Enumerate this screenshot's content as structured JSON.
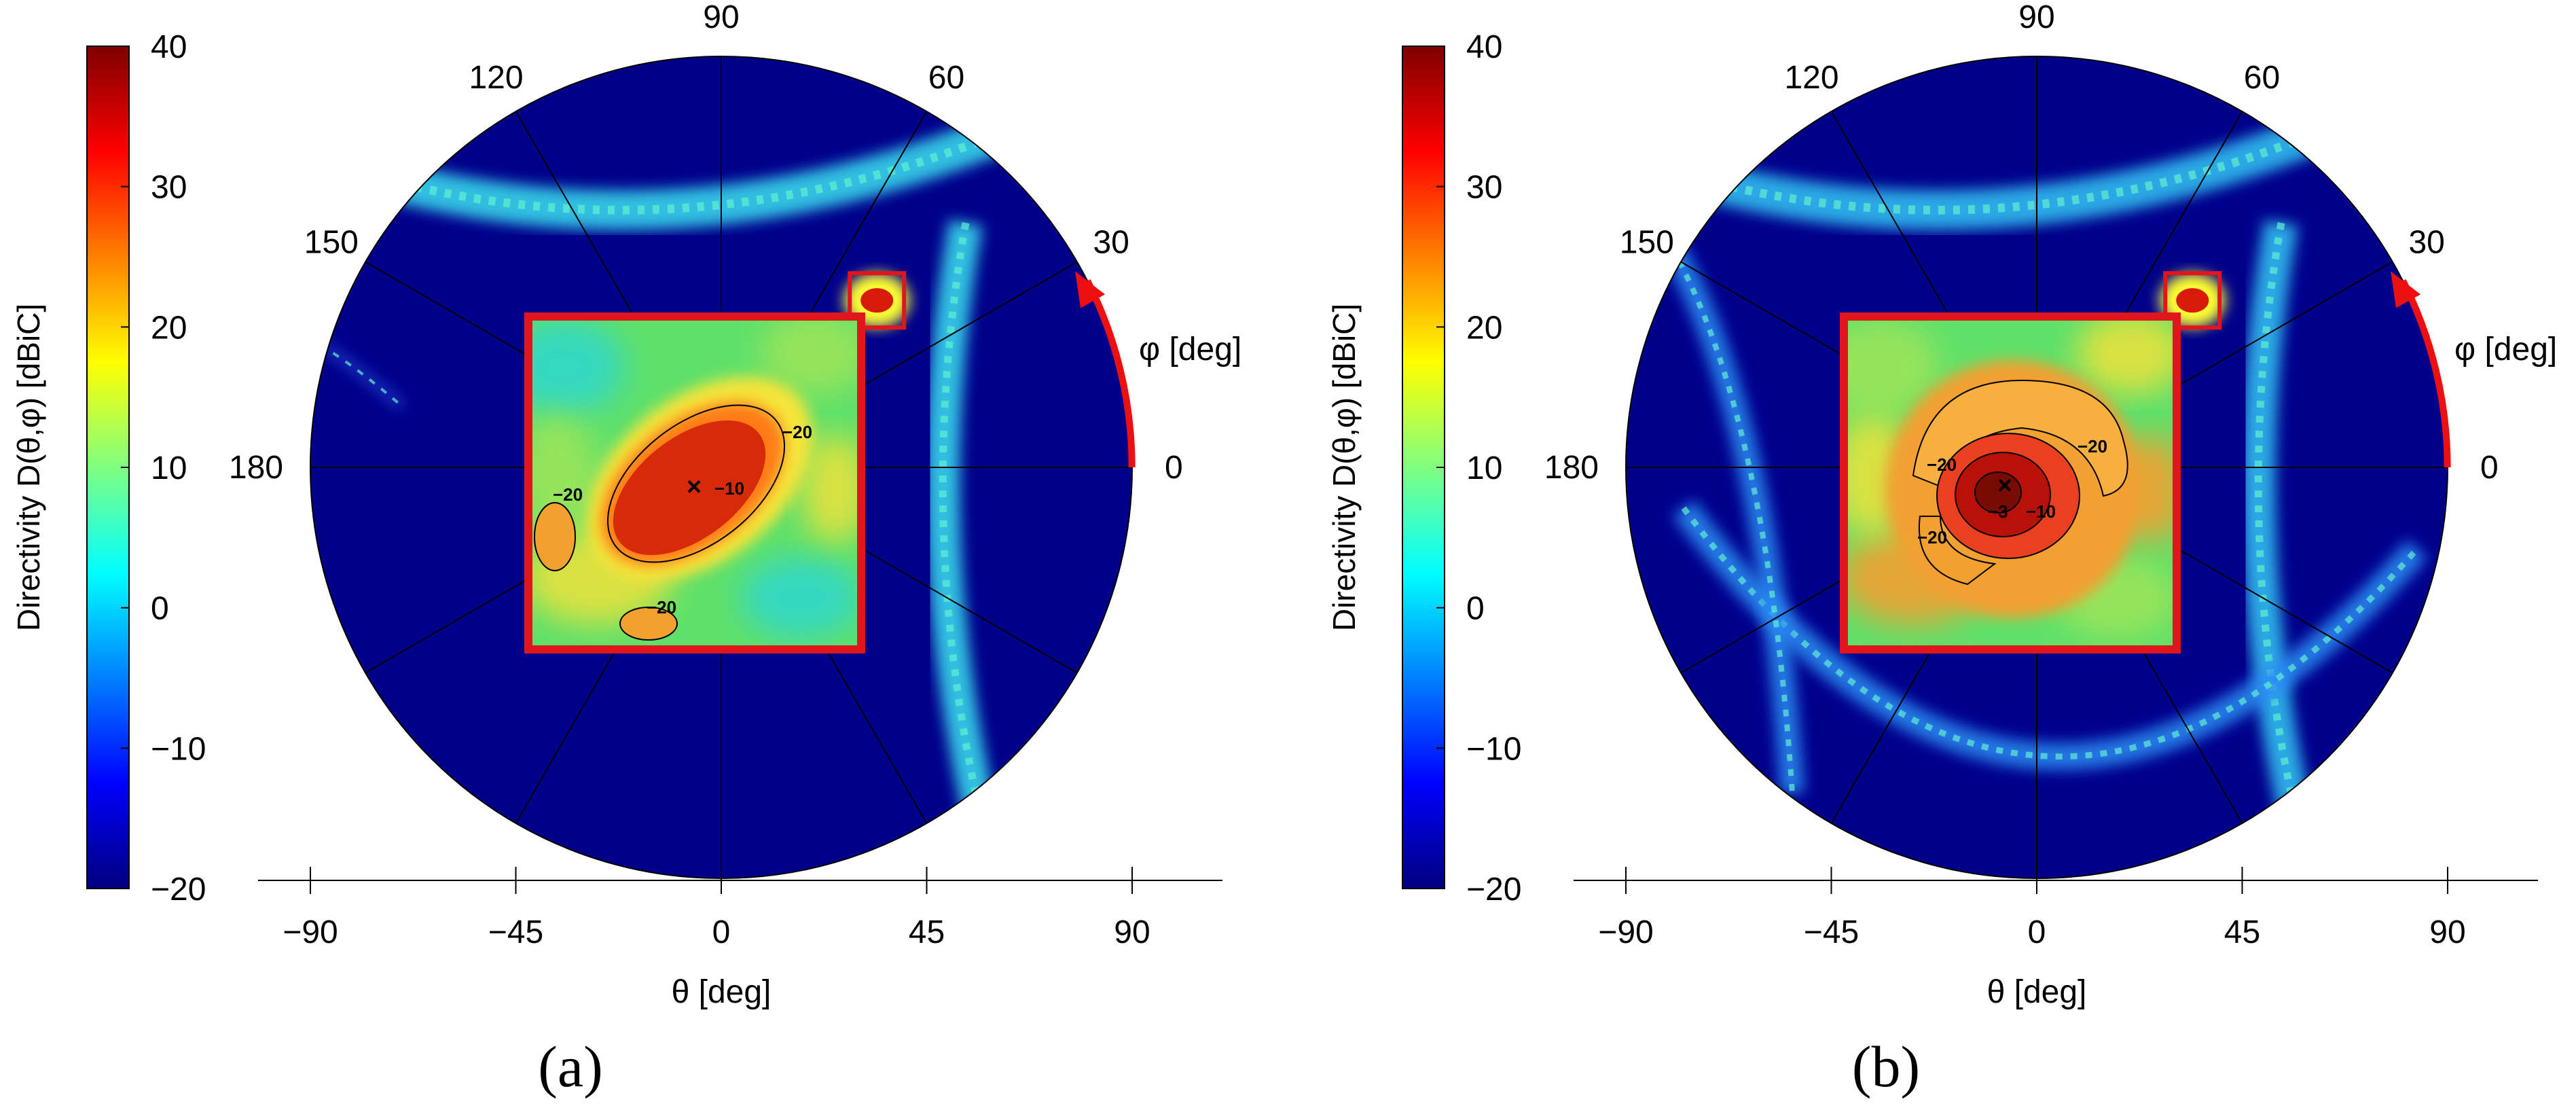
{
  "chart_data": [
    {
      "type": "heatmap",
      "panel_label": "(a)",
      "colorbar": {
        "label": "Directivity D(θ,φ) [dBiC]",
        "range": [
          -20,
          40
        ],
        "ticks": [
          "40",
          "30",
          "20",
          "10",
          "0",
          "−10",
          "−20"
        ],
        "colormap": [
          "#00007f",
          "#0000ff",
          "#0080ff",
          "#00ffff",
          "#80ff80",
          "#ffff00",
          "#ff8000",
          "#ff0000",
          "#7f0000"
        ]
      },
      "polar": {
        "angle_ticks": [
          "0",
          "30",
          "60",
          "90",
          "120",
          "150",
          "180"
        ],
        "angle_label": "φ [deg]"
      },
      "xaxis": {
        "label": "θ [deg]",
        "ticks": [
          "−90",
          "−45",
          "0",
          "45",
          "90"
        ],
        "range": [
          -90,
          90
        ]
      },
      "background_color": "#00008b",
      "main_beam": {
        "theta": 50,
        "phi": 47
      },
      "bands": [
        {
          "kind": "arc-top",
          "level_db": 10
        },
        {
          "kind": "arc-right",
          "level_db": 10
        },
        {
          "kind": "arc-left-faint",
          "level_db": -5
        }
      ],
      "inset": {
        "background_colors": [
          "#5fe06a",
          "#32d8c8",
          "#9be45a",
          "#e6e23c"
        ],
        "peak_color": "#d62a0a",
        "contour_labels": [
          "−20",
          "−10",
          "−20",
          "−20"
        ],
        "marker": "×"
      }
    },
    {
      "type": "heatmap",
      "panel_label": "(b)",
      "colorbar": {
        "label": "Directivity D(θ,φ) [dBiC]",
        "range": [
          -20,
          40
        ],
        "ticks": [
          "40",
          "30",
          "20",
          "10",
          "0",
          "−10",
          "−20"
        ],
        "colormap": [
          "#00007f",
          "#0000ff",
          "#0080ff",
          "#00ffff",
          "#80ff80",
          "#ffff00",
          "#ff8000",
          "#ff0000",
          "#7f0000"
        ]
      },
      "polar": {
        "angle_ticks": [
          "0",
          "30",
          "60",
          "90",
          "120",
          "150",
          "180"
        ],
        "angle_label": "φ [deg]"
      },
      "xaxis": {
        "label": "θ [deg]",
        "ticks": [
          "−90",
          "−45",
          "0",
          "45",
          "90"
        ],
        "range": [
          -90,
          90
        ]
      },
      "background_color": "#00008b",
      "main_beam": {
        "theta": 50,
        "phi": 47
      },
      "bands": [
        {
          "kind": "arc-top",
          "level_db": 5
        },
        {
          "kind": "arc-right",
          "level_db": 5
        },
        {
          "kind": "ring-bottom",
          "level_db": 0
        },
        {
          "kind": "arc-left",
          "level_db": 0
        }
      ],
      "inset": {
        "background_colors": [
          "#5fe06a",
          "#9be45a",
          "#e6e23c",
          "#f2a030"
        ],
        "peak_color": "#b81208",
        "contour_labels": [
          "−20",
          "−20",
          "−3",
          "−10",
          "−20"
        ],
        "marker": "×"
      }
    }
  ]
}
